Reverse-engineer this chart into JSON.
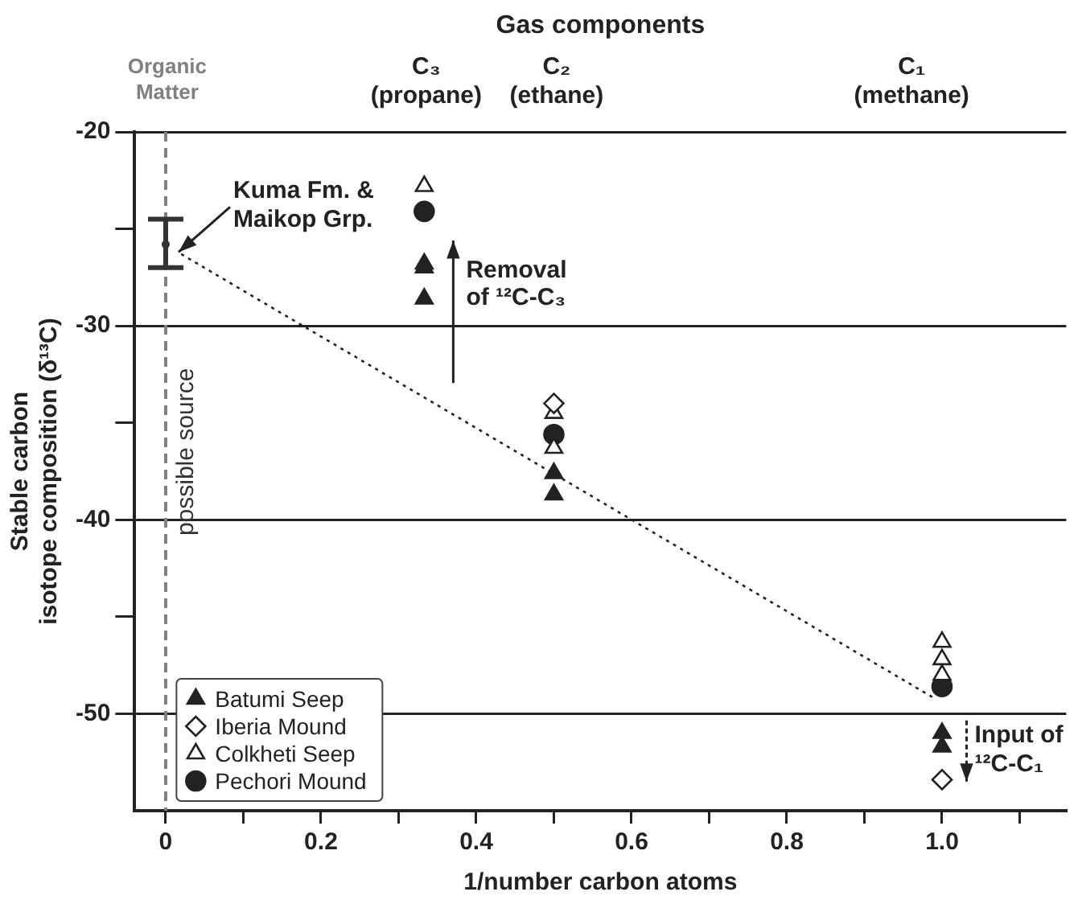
{
  "chart_data": {
    "type": "scatter",
    "xlabel": "1/number carbon atoms",
    "ylabel": "Stable carbon\nisotope composition (δ¹³C)",
    "x2label": "Gas components",
    "xlim": [
      -0.04,
      1.16
    ],
    "ylim": [
      -55,
      -20
    ],
    "xticks": [
      0,
      {
        "value": 0.1,
        "label": null
      },
      0.2,
      {
        "value": 0.3,
        "label": null
      },
      0.4,
      {
        "value": 0.5,
        "label": null
      },
      0.6,
      {
        "value": 0.7,
        "label": null
      },
      0.8,
      {
        "value": 0.9,
        "label": null
      },
      {
        "value": 1,
        "label": "1.0"
      },
      {
        "value": 1.1,
        "label": null
      }
    ],
    "yticks": [
      {
        "value": -50,
        "label": "-50"
      },
      {
        "value": -45,
        "label": null
      },
      {
        "value": -40,
        "label": "-40"
      },
      {
        "value": -35,
        "label": null
      },
      {
        "value": -30,
        "label": "-30"
      },
      {
        "value": -25,
        "label": null
      },
      {
        "value": -20,
        "label": "-20"
      }
    ],
    "grid": "y",
    "legend": "bottom left",
    "series": [
      {
        "name": "Batumi Seep",
        "type": "scatter",
        "marker": "triangle",
        "color": "#222222",
        "x": [
          0.333,
          0.333,
          0.333,
          0.5,
          0.5,
          1,
          1
        ],
        "values": [
          -26.8,
          -27.0,
          -28.6,
          -37.6,
          -38.7,
          -51.0,
          -51.7
        ]
      },
      {
        "name": "Iberia Mound",
        "type": "scatter",
        "marker": "diamond",
        "color": "#ffffff",
        "x": [
          0.5,
          1
        ],
        "values": [
          -34.0,
          -53.4
        ]
      },
      {
        "name": "Colkheti Seep",
        "type": "scatter",
        "marker": "triangle",
        "color": "#ffffff",
        "x": [
          0.333,
          0.5,
          0.5,
          1,
          1,
          1
        ],
        "values": [
          -22.8,
          -34.5,
          -36.3,
          -46.3,
          -47.2,
          -48.0
        ]
      },
      {
        "name": "Pechori Mound",
        "type": "scatter",
        "marker": "circle",
        "color": "#222222",
        "x": [
          0.333,
          0.5,
          1
        ],
        "values": [
          -24.1,
          -35.6,
          -48.6
        ]
      },
      {
        "type": "scatter",
        "color": "#333333",
        "x": [
          0
        ],
        "values": [
          -25.8
        ],
        "errors": [
          [
            -27.0,
            -24.5
          ]
        ]
      },
      {
        "type": "line",
        "marker": "none",
        "line_style": "dotted",
        "color": "#222222",
        "x": [
          0.02,
          0.99
        ],
        "values": [
          -26.3,
          -49.2
        ]
      }
    ],
    "ref_lines": [
      {
        "axis": "x",
        "value": 0,
        "label": "possible source",
        "color": "#808080",
        "line_style": "dashed"
      }
    ],
    "annotations": [
      {
        "text": "Kuma Fm. &\nMaikop Grp.",
        "x": 0,
        "y": -25.7
      },
      "Removal\nof ¹²C-C₃",
      "Input of\n¹²C-C₁",
      "Organic\nMatter",
      "C₃\n(propane)",
      "C₂\n(ethane)",
      "C₁\n(methane)"
    ]
  }
}
